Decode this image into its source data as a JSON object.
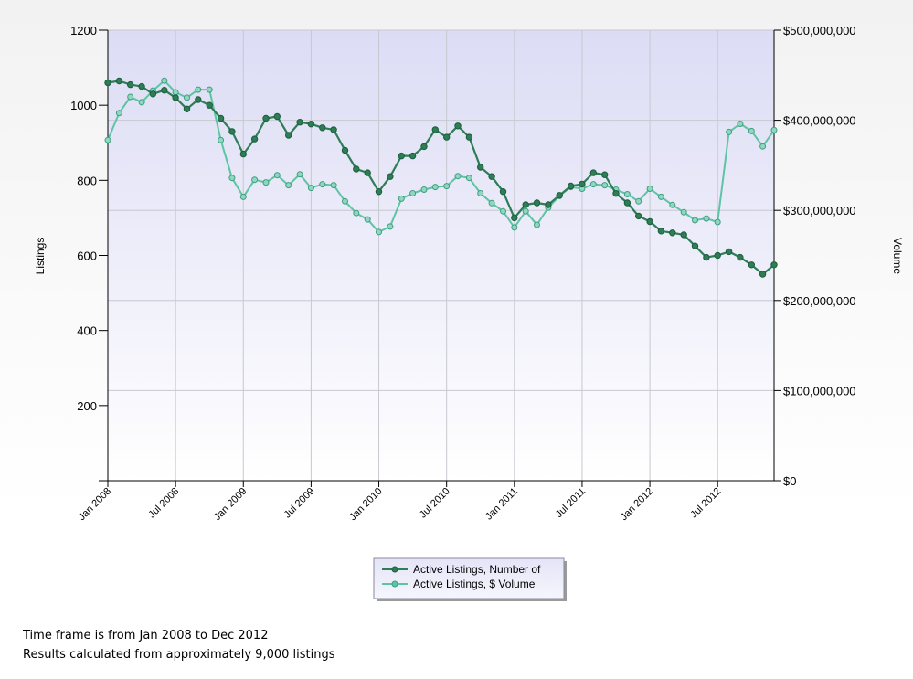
{
  "chart_data": {
    "type": "line",
    "ylabel_left": "Listings",
    "ylabel_right": "Volume",
    "ylim_left": [
      0,
      1200
    ],
    "ylim_right": [
      0,
      500000000
    ],
    "yticks_left": [
      "200",
      "400",
      "600",
      "800",
      "1000",
      "1200"
    ],
    "yticks_right": [
      "$0",
      "$100,000,000",
      "$200,000,000",
      "$300,000,000",
      "$400,000,000",
      "$500,000,000"
    ],
    "x_tick_labels": [
      "Jan 2008",
      "Jul 2008",
      "Jan 2009",
      "Jul 2009",
      "Jan 2010",
      "Jul 2010",
      "Jan 2011",
      "Jul 2011",
      "Jan 2012",
      "Jul 2012"
    ],
    "x": [
      "Jan 2008",
      "Feb 2008",
      "Mar 2008",
      "Apr 2008",
      "May 2008",
      "Jun 2008",
      "Jul 2008",
      "Aug 2008",
      "Sep 2008",
      "Oct 2008",
      "Nov 2008",
      "Dec 2008",
      "Jan 2009",
      "Feb 2009",
      "Mar 2009",
      "Apr 2009",
      "May 2009",
      "Jun 2009",
      "Jul 2009",
      "Aug 2009",
      "Sep 2009",
      "Oct 2009",
      "Nov 2009",
      "Dec 2009",
      "Jan 2010",
      "Feb 2010",
      "Mar 2010",
      "Apr 2010",
      "May 2010",
      "Jun 2010",
      "Jul 2010",
      "Aug 2010",
      "Sep 2010",
      "Oct 2010",
      "Nov 2010",
      "Dec 2010",
      "Jan 2011",
      "Feb 2011",
      "Mar 2011",
      "Apr 2011",
      "May 2011",
      "Jun 2011",
      "Jul 2011",
      "Aug 2011",
      "Sep 2011",
      "Oct 2011",
      "Nov 2011",
      "Dec 2011",
      "Jan 2012",
      "Feb 2012",
      "Mar 2012",
      "Apr 2012",
      "May 2012",
      "Jun 2012",
      "Jul 2012",
      "Aug 2012",
      "Sep 2012",
      "Oct 2012",
      "Nov 2012",
      "Dec 2012"
    ],
    "grid": true,
    "legend_placement": "bottom-center",
    "series": [
      {
        "name": "Active Listings, Number of",
        "axis": "left",
        "color": "#2e7d57",
        "values": [
          1060,
          1065,
          1055,
          1050,
          1030,
          1040,
          1020,
          990,
          1015,
          1000,
          965,
          930,
          870,
          910,
          965,
          970,
          920,
          955,
          950,
          940,
          935,
          880,
          830,
          820,
          770,
          810,
          865,
          865,
          890,
          935,
          915,
          945,
          915,
          835,
          810,
          770,
          700,
          735,
          740,
          735,
          760,
          785,
          790,
          820,
          815,
          765,
          740,
          705,
          690,
          665,
          660,
          655,
          625,
          595,
          600,
          610,
          595,
          575,
          550,
          575
        ]
      },
      {
        "name": "Active Listings, $ Volume",
        "axis": "right",
        "color": "#5ec4a3",
        "values": [
          378000000,
          408000000,
          426000000,
          420000000,
          433000000,
          444000000,
          431000000,
          425000000,
          434000000,
          434000000,
          378000000,
          336000000,
          315000000,
          334000000,
          331000000,
          339000000,
          328000000,
          340000000,
          325000000,
          329000000,
          328000000,
          310000000,
          297000000,
          290000000,
          276000000,
          282000000,
          313000000,
          319000000,
          323000000,
          326000000,
          327000000,
          338000000,
          336000000,
          319000000,
          308000000,
          299000000,
          281000000,
          299000000,
          284000000,
          303000000,
          316000000,
          326000000,
          324000000,
          329000000,
          328000000,
          323000000,
          318000000,
          310000000,
          324000000,
          315000000,
          306000000,
          298000000,
          289000000,
          291000000,
          287000000,
          387000000,
          396000000,
          388000000,
          371000000,
          389000000
        ]
      }
    ]
  },
  "footer": {
    "line1": "Time frame is from Jan 2008 to Dec 2012",
    "line2": "Results calculated from approximately 9,000 listings"
  }
}
